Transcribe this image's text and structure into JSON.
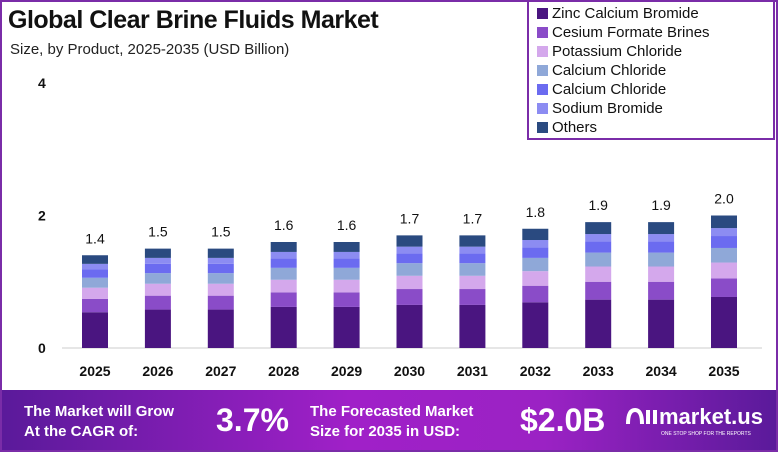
{
  "chart_data": {
    "type": "bar",
    "stacked": true,
    "title": "Global Clear Brine Fluids Market",
    "subtitle": "Size, by Product, 2025-2035 (USD Billion)",
    "categories": [
      "2025",
      "2026",
      "2027",
      "2028",
      "2029",
      "2030",
      "2031",
      "2032",
      "2033",
      "2034",
      "2035"
    ],
    "ylim": [
      0,
      4
    ],
    "yticks": [
      "0",
      "2",
      "4"
    ],
    "grid": false,
    "legend_position": "top-right",
    "totals": [
      1.4,
      1.5,
      1.5,
      1.6,
      1.6,
      1.7,
      1.7,
      1.8,
      1.9,
      1.9,
      2.0
    ],
    "total_labels": [
      "1.4",
      "1.5",
      "1.5",
      "1.6",
      "1.6",
      "1.7",
      "1.7",
      "1.8",
      "1.9",
      "1.9",
      "2.0"
    ],
    "series": [
      {
        "name": "Zinc Calcium Bromide",
        "color": "#4a1580",
        "values": [
          0.54,
          0.58,
          0.58,
          0.62,
          0.62,
          0.65,
          0.65,
          0.69,
          0.73,
          0.73,
          0.77
        ]
      },
      {
        "name": "Cesium Formate Brines",
        "color": "#8a4cc8",
        "values": [
          0.2,
          0.21,
          0.21,
          0.22,
          0.22,
          0.24,
          0.24,
          0.25,
          0.27,
          0.27,
          0.28
        ]
      },
      {
        "name": "Potassium Chloride",
        "color": "#d4a8ec",
        "values": [
          0.17,
          0.18,
          0.18,
          0.19,
          0.19,
          0.2,
          0.2,
          0.22,
          0.23,
          0.23,
          0.24
        ]
      },
      {
        "name": "Calcium Chloride",
        "color": "#8fa8d8",
        "values": [
          0.15,
          0.16,
          0.16,
          0.18,
          0.18,
          0.19,
          0.19,
          0.2,
          0.21,
          0.21,
          0.22
        ]
      },
      {
        "name": "Calcium Chloride",
        "color": "#6b6bf0",
        "values": [
          0.13,
          0.14,
          0.14,
          0.14,
          0.14,
          0.15,
          0.15,
          0.16,
          0.17,
          0.17,
          0.18
        ]
      },
      {
        "name": "Sodium Bromide",
        "color": "#8c8cf2",
        "values": [
          0.08,
          0.09,
          0.09,
          0.1,
          0.1,
          0.1,
          0.1,
          0.11,
          0.11,
          0.11,
          0.12
        ]
      },
      {
        "name": "Others",
        "color": "#2a4a80",
        "values": [
          0.13,
          0.14,
          0.14,
          0.15,
          0.15,
          0.17,
          0.17,
          0.17,
          0.18,
          0.18,
          0.19
        ]
      }
    ]
  },
  "footer": {
    "cagr_text_1": "The Market will Grow",
    "cagr_text_2": "At the CAGR of:",
    "cagr_value": "3.7%",
    "forecast_text_1": "The Forecasted Market",
    "forecast_text_2": "Size for 2035 in USD:",
    "forecast_value": "$2.0B",
    "brand": "market.us",
    "brand_tagline": "ONE STOP SHOP FOR THE REPORTS"
  }
}
